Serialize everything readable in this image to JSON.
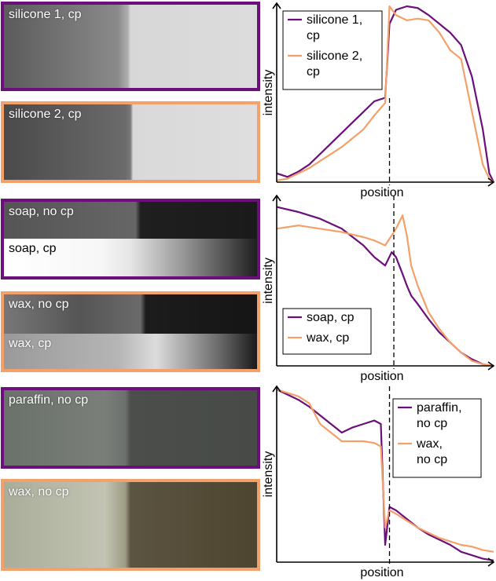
{
  "colors": {
    "purple": "#6b0f7a",
    "orange": "#f4a06a"
  },
  "panels": [
    {
      "label": "silicone 1, cp",
      "border": "#6b0f7a"
    },
    {
      "label": "silicone 2, cp",
      "border": "#f4a06a"
    },
    {
      "label": "soap, no cp",
      "border": "#6b0f7a"
    },
    {
      "label": "soap, cp",
      "border": "#6b0f7a"
    },
    {
      "label": "wax, no cp",
      "border": "#f4a06a"
    },
    {
      "label": "wax, cp",
      "border": "#f4a06a"
    },
    {
      "label": "paraffin, no cp",
      "border": "#6b0f7a"
    },
    {
      "label": "wax, no cp",
      "border": "#f4a06a"
    }
  ],
  "chart_data": [
    {
      "type": "line",
      "xlabel": "position",
      "ylabel": "intensity",
      "xlim": [
        0,
        1
      ],
      "ylim": [
        0,
        1
      ],
      "x": [
        0,
        0.05,
        0.1,
        0.15,
        0.2,
        0.25,
        0.3,
        0.35,
        0.4,
        0.45,
        0.5,
        0.52,
        0.55,
        0.6,
        0.65,
        0.7,
        0.75,
        0.8,
        0.85,
        0.9,
        0.95,
        0.98,
        1.0
      ],
      "series": [
        {
          "name": "silicone 1,\ncp",
          "color": "#6b0f7a",
          "values": [
            0.05,
            0.03,
            0.06,
            0.1,
            0.16,
            0.22,
            0.28,
            0.34,
            0.4,
            0.46,
            0.48,
            0.9,
            0.98,
            1.0,
            0.99,
            0.95,
            0.9,
            0.85,
            0.78,
            0.6,
            0.3,
            0.05,
            0.0
          ]
        },
        {
          "name": "silicone 2,\ncp",
          "color": "#f4a06a",
          "values": [
            0.01,
            0.02,
            0.05,
            0.08,
            0.12,
            0.16,
            0.2,
            0.25,
            0.3,
            0.38,
            0.45,
            1.0,
            0.95,
            0.92,
            0.93,
            0.92,
            0.85,
            0.75,
            0.7,
            0.4,
            0.1,
            0.02,
            0.0
          ]
        }
      ],
      "legend": "top-left",
      "dashed_line_x": 0.52
    },
    {
      "type": "line",
      "xlabel": "position",
      "ylabel": "intensity",
      "xlim": [
        0,
        1
      ],
      "ylim": [
        0,
        1
      ],
      "x": [
        0,
        0.1,
        0.2,
        0.3,
        0.4,
        0.45,
        0.5,
        0.53,
        0.55,
        0.58,
        0.6,
        0.62,
        0.65,
        0.7,
        0.75,
        0.8,
        0.85,
        0.9,
        0.95,
        1.0
      ],
      "series": [
        {
          "name": "soap, cp",
          "color": "#6b0f7a",
          "values": [
            0.95,
            0.92,
            0.88,
            0.82,
            0.72,
            0.65,
            0.6,
            0.68,
            0.65,
            0.55,
            0.48,
            0.42,
            0.37,
            0.28,
            0.2,
            0.14,
            0.08,
            0.04,
            0.01,
            0.0
          ]
        },
        {
          "name": "wax, cp",
          "color": "#f4a06a",
          "values": [
            0.82,
            0.84,
            0.82,
            0.8,
            0.77,
            0.75,
            0.72,
            0.78,
            0.82,
            0.9,
            0.78,
            0.6,
            0.48,
            0.32,
            0.22,
            0.14,
            0.08,
            0.03,
            0.01,
            0.0
          ]
        }
      ],
      "legend": "bottom-left",
      "dashed_line_x": 0.54
    },
    {
      "type": "line",
      "xlabel": "position",
      "ylabel": "intensity",
      "xlim": [
        0,
        1
      ],
      "ylim": [
        0,
        1
      ],
      "x": [
        0,
        0.05,
        0.1,
        0.15,
        0.2,
        0.25,
        0.3,
        0.35,
        0.4,
        0.45,
        0.48,
        0.5,
        0.52,
        0.55,
        0.6,
        0.65,
        0.7,
        0.75,
        0.8,
        0.85,
        0.9,
        0.95,
        1.0
      ],
      "series": [
        {
          "name": "paraffin,\nno cp",
          "color": "#6b0f7a",
          "values": [
            1.0,
            0.97,
            0.94,
            0.9,
            0.85,
            0.8,
            0.75,
            0.78,
            0.8,
            0.82,
            0.8,
            0.1,
            0.32,
            0.3,
            0.25,
            0.2,
            0.16,
            0.13,
            0.1,
            0.06,
            0.04,
            0.02,
            0.01
          ]
        },
        {
          "name": "wax,\nno cp",
          "color": "#f4a06a",
          "values": [
            1.0,
            0.98,
            0.96,
            0.92,
            0.8,
            0.75,
            0.7,
            0.7,
            0.7,
            0.69,
            0.67,
            0.2,
            0.3,
            0.28,
            0.24,
            0.2,
            0.17,
            0.14,
            0.12,
            0.1,
            0.09,
            0.07,
            0.06
          ]
        }
      ],
      "legend": "top-right",
      "dashed_line_x": 0.52
    }
  ]
}
